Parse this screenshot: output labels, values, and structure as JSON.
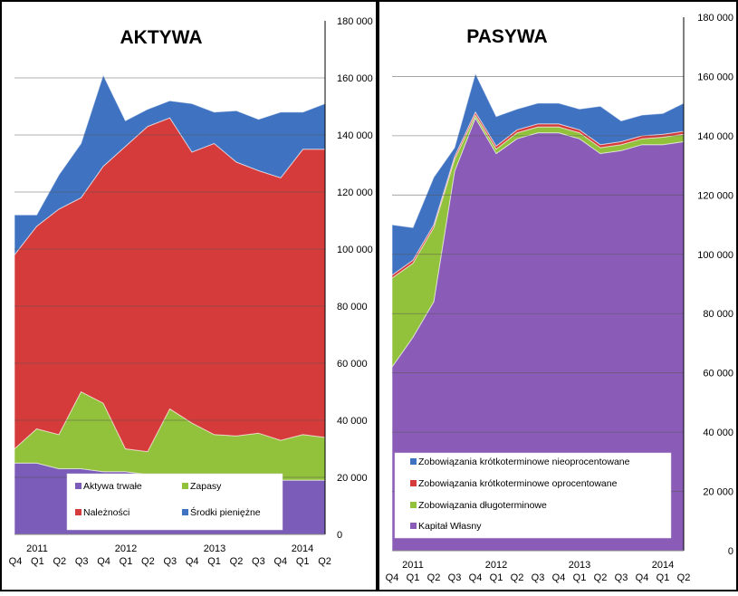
{
  "chart_data": [
    {
      "type": "area",
      "stacked": true,
      "title": "AKTYWA",
      "ylim": [
        0,
        180000
      ],
      "yticks": [
        "180 000",
        "160 000",
        "140 000",
        "120 000",
        "100 000",
        "80 000",
        "60 000",
        "40 000",
        "20 000",
        "0"
      ],
      "quarters": [
        "Q4",
        "Q1",
        "Q2",
        "Q3",
        "Q4",
        "Q1",
        "Q2",
        "Q3",
        "Q4",
        "Q1",
        "Q2",
        "Q3",
        "Q4",
        "Q1",
        "Q2"
      ],
      "years": [
        "2011",
        "2012",
        "2013",
        "2014"
      ],
      "grid": true,
      "legend_position": "bottom",
      "series": [
        {
          "name": "Aktywa trwałe",
          "color": "#7B5CB8",
          "values": [
            25000,
            25000,
            23000,
            23000,
            22000,
            22000,
            21000,
            21000,
            20000,
            20000,
            19500,
            19500,
            19000,
            19000,
            19000
          ]
        },
        {
          "name": "Zapasy",
          "color": "#92C13B",
          "values": [
            5000,
            12000,
            12000,
            27000,
            24000,
            8000,
            8000,
            23000,
            19000,
            15000,
            15000,
            16000,
            14000,
            16000,
            15000
          ]
        },
        {
          "name": "Należności",
          "color": "#D63B3B",
          "values": [
            68000,
            71000,
            79000,
            68000,
            83000,
            106000,
            114000,
            102000,
            95000,
            102000,
            96000,
            92000,
            92000,
            100000,
            101000
          ]
        },
        {
          "name": "Środki pieniężne",
          "color": "#3F73C2",
          "values": [
            14000,
            4000,
            12000,
            19000,
            32000,
            9000,
            6000,
            6000,
            17000,
            11000,
            18000,
            18000,
            23000,
            13000,
            16000
          ]
        }
      ]
    },
    {
      "type": "area",
      "stacked": true,
      "title": "PASYWA",
      "ylim": [
        0,
        180000
      ],
      "yticks": [
        "180 000",
        "160 000",
        "140 000",
        "120 000",
        "100 000",
        "80 000",
        "60 000",
        "40 000",
        "20 000",
        "0"
      ],
      "quarters": [
        "Q4",
        "Q1",
        "Q2",
        "Q3",
        "Q4",
        "Q1",
        "Q2",
        "Q3",
        "Q4",
        "Q1",
        "Q2",
        "Q3",
        "Q4",
        "Q1",
        "Q2"
      ],
      "years": [
        "2011",
        "2012",
        "2013",
        "2014"
      ],
      "grid": true,
      "legend_position": "bottom",
      "series": [
        {
          "name": "Kapitał Własny",
          "color": "#8A5CB8",
          "values": [
            62000,
            72000,
            84000,
            128000,
            146000,
            134000,
            139000,
            141000,
            141000,
            139000,
            134000,
            135000,
            137000,
            137000,
            138000
          ]
        },
        {
          "name": "Zobowiązania długoterminowe",
          "color": "#92C13B",
          "values": [
            30000,
            25000,
            25000,
            4000,
            1000,
            1500,
            2000,
            2000,
            2000,
            2000,
            2000,
            2000,
            2000,
            2500,
            2500
          ]
        },
        {
          "name": "Zobowiązania krótkoterminowe oprocentowane",
          "color": "#D63B3B",
          "values": [
            1000,
            1000,
            1000,
            1000,
            1000,
            1000,
            1000,
            1000,
            1000,
            1000,
            1000,
            1000,
            1000,
            1000,
            1000
          ]
        },
        {
          "name": "Zobowiązania krótkoterminowe nieoprocentowane",
          "color": "#3F73C2",
          "values": [
            17000,
            11000,
            16000,
            3000,
            13000,
            10000,
            7000,
            7000,
            7000,
            7000,
            13000,
            7000,
            7000,
            7000,
            9500
          ]
        }
      ]
    }
  ]
}
